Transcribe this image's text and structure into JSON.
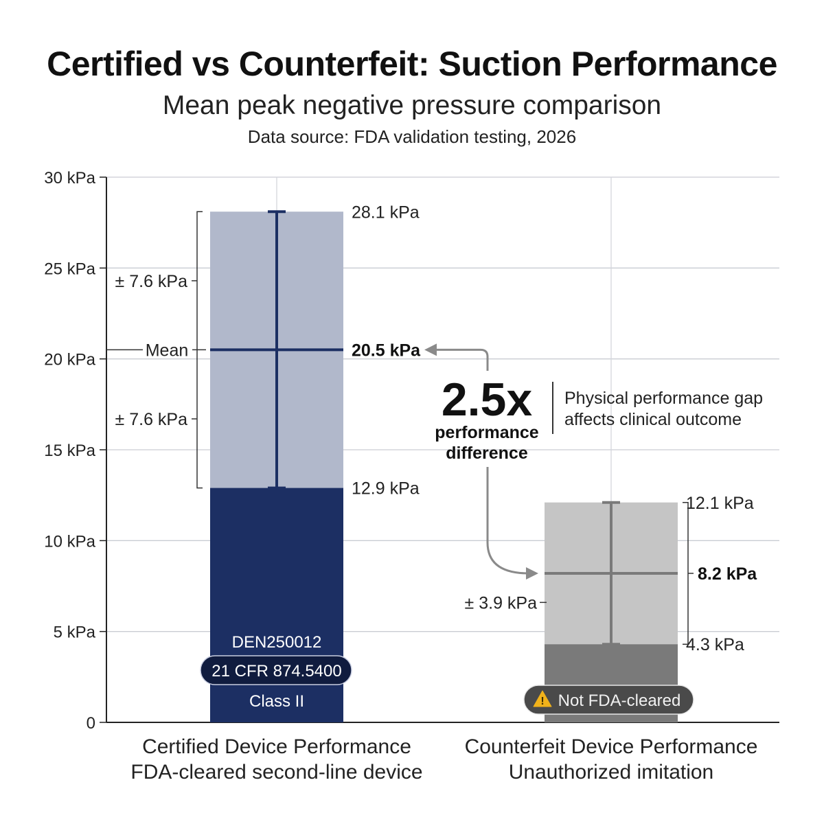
{
  "header": {
    "title": "Certified vs Counterfeit: Suction Performance",
    "subtitle": "Mean peak negative pressure comparison",
    "source": "Data source: FDA validation testing, 2026"
  },
  "chart_data": {
    "type": "bar",
    "ylim": [
      0,
      30
    ],
    "y_ticks": [
      {
        "value": 30,
        "label": "30 kPa"
      },
      {
        "value": 25,
        "label": "25 kPa"
      },
      {
        "value": 20,
        "label": "20 kPa"
      },
      {
        "value": 15,
        "label": "15 kPa"
      },
      {
        "value": 10,
        "label": "10 kPa"
      },
      {
        "value": 5,
        "label": "5 kPa"
      },
      {
        "value": 0,
        "label": "0"
      }
    ],
    "grid": true,
    "categories": [
      {
        "line1": "Certified Device Performance",
        "line2": "FDA-cleared second-line device"
      },
      {
        "line1": "Counterfeit Device Performance",
        "line2": "Unauthorized imitation"
      }
    ],
    "series": [
      {
        "mean": 20.5,
        "min": 12.9,
        "max": 28.1,
        "sd": 7.6,
        "mean_label": "20.5 kPa",
        "min_label": "12.9 kPa",
        "max_label": "28.1 kPa",
        "sd_label_upper": "± 7.6 kPa",
        "sd_label_lower": "± 7.6 kPa",
        "mean_marker_label": "Mean",
        "color_solid": "#1c2f63",
        "color_band": "#b1b8cb",
        "color_outer": "#dcdfe8",
        "color_line": "#1c2f63",
        "badges": {
          "code": "DEN250012",
          "regulation": "21 CFR 874.5400",
          "class": "Class II"
        }
      },
      {
        "mean": 8.2,
        "min": 4.3,
        "max": 12.1,
        "sd": 3.9,
        "mean_label": "8.2 kPa",
        "min_label": "4.3 kPa",
        "max_label": "12.1 kPa",
        "sd_label": "± 3.9 kPa",
        "color_solid": "#7a7a7a",
        "color_band": "#c5c5c5",
        "color_outer": "#e6e6e6",
        "color_line": "#7a7a7a",
        "badges": {
          "warning_icon": "warning-triangle-icon",
          "warning": "Not FDA-cleared"
        }
      }
    ],
    "annotation": {
      "ratio": "2.5x",
      "ratio_caption_1": "performance",
      "ratio_caption_2": "difference",
      "note_1": "Physical performance gap",
      "note_2": "affects clinical outcome"
    }
  }
}
